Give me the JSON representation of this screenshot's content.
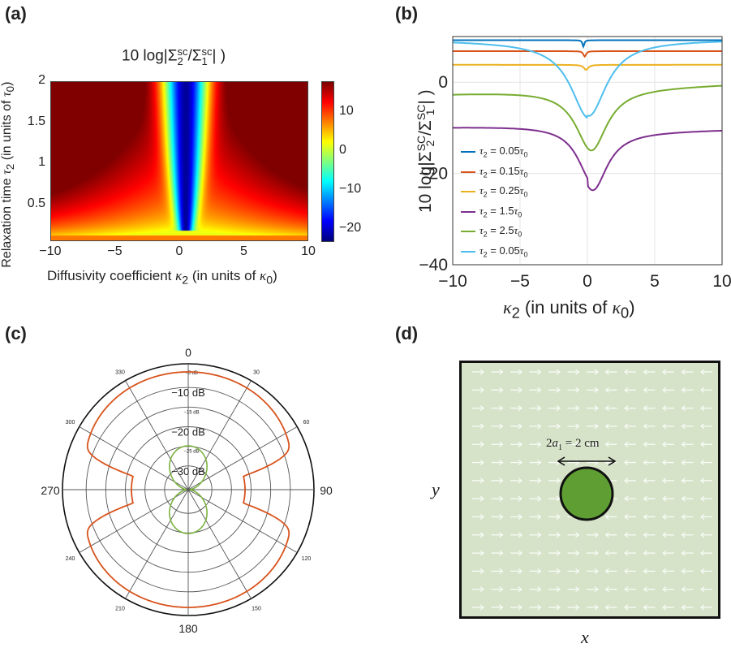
{
  "panels": {
    "a": {
      "label": "(a)",
      "title": "10 log|Σ2sc/Σ1sc| )",
      "title_parts": {
        "pre": "10 log|Σ",
        "sub2": "2",
        "sup1": "sc",
        "mid": "/Σ",
        "sub1": "1",
        "sup2": "sc",
        "post": "| )"
      },
      "xlabel": "Diffusivity coefficient κ2 (in units of κ0)",
      "xlabel_parts": {
        "pre": "Diffusivity coefficient ",
        "sym": "κ",
        "sub": "2",
        "mid": " (in units of ",
        "sym2": "κ",
        "sub2": "0",
        "post": ")"
      },
      "ylabel": "Relaxation time τ2 (in units of τ0)",
      "ylabel_parts": {
        "pre": "Relaxation time ",
        "sym": "τ",
        "sub": "2",
        "mid": " (in units of ",
        "sym2": "τ",
        "sub2": "0",
        "post": ")"
      },
      "xticks": [
        "-10",
        "-5",
        "0",
        "5",
        "10"
      ],
      "yticks": [
        "0.5",
        "1",
        "1.5",
        "2"
      ],
      "cbticks": [
        "10",
        "0",
        "-10",
        "-20"
      ]
    },
    "b": {
      "label": "(b)",
      "ylabel": "10 log|Σ2sc/Σ1sc| )",
      "ylabel_parts": {
        "pre": "10 log|Σ",
        "sub2": "2",
        "sup1": "SC",
        "mid": "/Σ",
        "sub1": "1",
        "sup2": "SC",
        "post": "| )"
      },
      "xlabel": "κ2 (in units of κ0)",
      "xlabel_parts": {
        "sym": "κ",
        "sub": "2",
        "mid": " (in units of ",
        "sym2": "κ",
        "sub2": "0",
        "post": ")"
      },
      "xticks": [
        "-10",
        "-5",
        "0",
        "5",
        "10"
      ],
      "yticks": [
        "0",
        "-20",
        "-40"
      ],
      "legend": [
        {
          "pre": "τ",
          "sub": "2",
          "mid": " = 0.05",
          "sym": "τ",
          "sub2": "0",
          "color": "#0072BD"
        },
        {
          "pre": "τ",
          "sub": "2",
          "mid": " = 0.15",
          "sym": "τ",
          "sub2": "0",
          "color": "#D95319"
        },
        {
          "pre": "τ",
          "sub": "2",
          "mid": " = 0.25",
          "sym": "τ",
          "sub2": "0",
          "color": "#EDB120"
        },
        {
          "pre": "τ",
          "sub": "2",
          "mid": " = 1.5",
          "sym": "τ",
          "sub2": "0",
          "color": "#7E2F8E"
        },
        {
          "pre": "τ",
          "sub": "2",
          "mid": " = 2.5",
          "sym": "τ",
          "sub2": "0",
          "color": "#77AC30"
        },
        {
          "pre": "τ",
          "sub": "2",
          "mid": " = 0.05",
          "sym": "τ",
          "sub2": "0",
          "color": "#4DBEEE"
        }
      ]
    },
    "c": {
      "label": "(c)",
      "angle_labels": [
        "0",
        "30",
        "60",
        "90",
        "120",
        "150",
        "180",
        "210",
        "240",
        "270",
        "300",
        "330"
      ],
      "ring_labels": [
        "-5 dB",
        "-10 dB",
        "-15 dB",
        "-20 dB",
        "-25 dB",
        "-30 dB"
      ]
    },
    "d": {
      "label": "(d)",
      "annotation": "2a1 = 2 cm",
      "annotation_parts": {
        "pre": "2",
        "sym": "a",
        "sub": "1",
        "post": " = 2 cm"
      },
      "xlabel": "x",
      "ylabel": "y",
      "colors": {
        "background": "#d6e3c8",
        "inclusion": "#5e9e32",
        "arrow": "#ffffff"
      }
    }
  },
  "chart_data": [
    {
      "type": "heatmap",
      "title": "10 log|Σ2sc/Σ1sc| )",
      "xlabel": "Diffusivity coefficient κ2 (in units of κ0)",
      "ylabel": "Relaxation time τ2 (in units of τ0)",
      "xlim": [
        -10,
        10
      ],
      "ylim": [
        0.05,
        2
      ],
      "clim": [
        -23,
        18
      ],
      "colormap": "jet",
      "minimum": {
        "x": 0.5,
        "y": 0.3,
        "value": -23
      }
    },
    {
      "type": "line",
      "xlabel": "κ2 (in units of κ0)",
      "ylabel": "10 log|Σ2sc/Σ1sc| )",
      "xlim": [
        -10,
        10
      ],
      "ylim": [
        -40,
        10
      ],
      "grid": true,
      "legend_position": "bottom-left",
      "series": [
        {
          "name": "τ2 = 0.05τ0",
          "color": "#0072BD",
          "base": 9.2,
          "dip_depth": 1.4,
          "dip_x": -0.3,
          "dip_width": 0.08,
          "x": [
            -10,
            -5,
            -0.3,
            5,
            10
          ],
          "y": [
            9.2,
            9.2,
            7.8,
            9.2,
            9.2
          ]
        },
        {
          "name": "τ2 = 0.15τ0",
          "color": "#D95319",
          "base": 6.8,
          "dip_depth": 1.2,
          "dip_x": -0.2,
          "dip_width": 0.12,
          "x": [
            -10,
            -5,
            -0.2,
            5,
            10
          ],
          "y": [
            6.8,
            6.8,
            5.6,
            6.8,
            6.8
          ]
        },
        {
          "name": "τ2 = 0.25τ0",
          "color": "#EDB120",
          "base": 3.8,
          "dip_depth": 1.1,
          "dip_x": -0.1,
          "dip_width": 0.2,
          "x": [
            -10,
            -5,
            -0.1,
            5,
            10
          ],
          "y": [
            3.8,
            3.8,
            2.7,
            3.8,
            3.8
          ]
        },
        {
          "name": "τ2 = 1.5τ0",
          "color": "#7E2F8E",
          "base": -9.8,
          "slope": 0.06,
          "dip_depth": 12.8,
          "dip_x": 0.4,
          "dip_width": 1.3,
          "x": [
            -10,
            -5,
            0.4,
            5,
            10
          ],
          "y": [
            -9.8,
            -9.3,
            -23.5,
            -11.8,
            -11.2
          ]
        },
        {
          "name": "τ2 = 2.5τ0",
          "color": "#77AC30",
          "base": -2.5,
          "slope": 0.1,
          "dip_depth": 13.5,
          "dip_x": 0.3,
          "dip_width": 1.4,
          "x": [
            -10,
            -5,
            0.3,
            5,
            10
          ],
          "y": [
            -3.8,
            -3.4,
            -16.3,
            -2.0,
            -0.8
          ]
        },
        {
          "name": "τ2 = 0.05τ0",
          "color": "#4DBEEE",
          "base": 8.5,
          "dip_depth": 16.5,
          "dip_x": 0.1,
          "dip_width": 1.6,
          "x": [
            -10,
            -5,
            0.1,
            5,
            10
          ],
          "y": [
            8.7,
            7.5,
            -8.0,
            7.8,
            9.0
          ]
        }
      ]
    },
    {
      "type": "line",
      "subtype": "polar",
      "angular_unit": "degrees",
      "radial_unit": "dB",
      "radial_range": [
        -35,
        0
      ],
      "series": [
        {
          "name": "",
          "color": "#d8531c",
          "peak_db": -2.5,
          "null_db": -30,
          "pattern": "cos2-lobes-outer"
        },
        {
          "name": "",
          "color": "#7cb342",
          "peak_db": -21,
          "null_db": -35,
          "pattern": "dipole-0-180"
        }
      ]
    }
  ]
}
